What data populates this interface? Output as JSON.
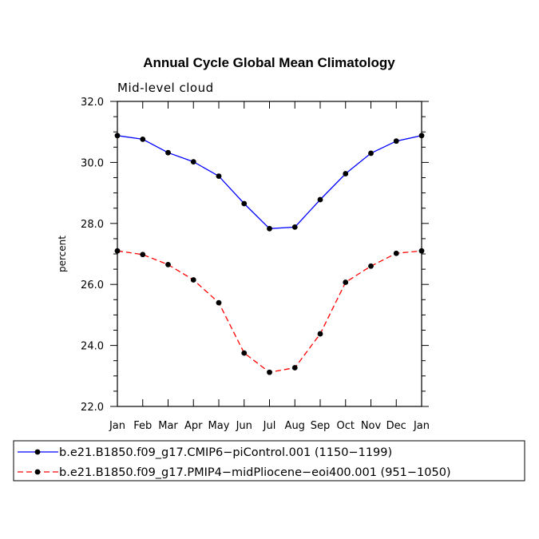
{
  "chart_data": {
    "type": "line",
    "title": "Annual Cycle Global Mean Climatology",
    "subtitle": "Mid-level cloud",
    "xlabel": "",
    "ylabel": "percent",
    "categories": [
      "Jan",
      "Feb",
      "Mar",
      "Apr",
      "May",
      "Jun",
      "Jul",
      "Aug",
      "Sep",
      "Oct",
      "Nov",
      "Dec",
      "Jan"
    ],
    "ylim": [
      22.0,
      32.0
    ],
    "yticks": [
      "22.0",
      "24.0",
      "26.0",
      "28.0",
      "30.0",
      "32.0"
    ],
    "grid": false,
    "legend_position": "bottom",
    "series": [
      {
        "name": "b.e21.B1850.f09_g17.CMIP6−piControl.001 (1150−1199)",
        "color": "#0000ff",
        "dash": "solid",
        "values": [
          30.88,
          30.76,
          30.32,
          30.02,
          29.55,
          28.65,
          27.83,
          27.88,
          28.78,
          29.63,
          30.3,
          30.7,
          30.88
        ]
      },
      {
        "name": "b.e21.B1850.f09_g17.PMIP4−midPliocene−eoi400.001 (951−1050)",
        "color": "#ff0000",
        "dash": "dashed",
        "values": [
          27.1,
          26.98,
          26.65,
          26.15,
          25.4,
          23.75,
          23.12,
          23.27,
          24.38,
          26.07,
          26.6,
          27.02,
          27.1
        ]
      }
    ]
  }
}
